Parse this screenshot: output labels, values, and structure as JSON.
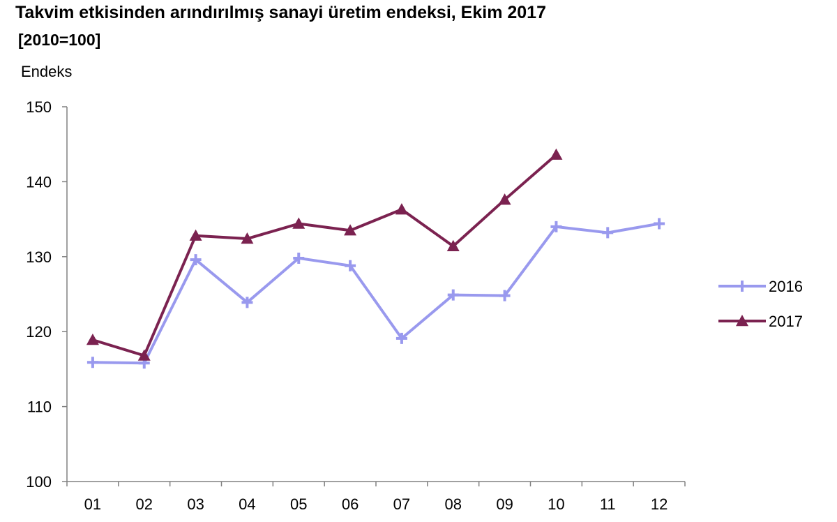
{
  "chart_data": {
    "type": "line",
    "title": "Takvim etkisinden arındırılmış sanayi üretim endeksi,  Ekim 2017",
    "subtitle": "[2010=100]",
    "xlabel": "",
    "ylabel": "Endeks",
    "categories": [
      "01",
      "02",
      "03",
      "04",
      "05",
      "06",
      "07",
      "08",
      "09",
      "10",
      "11",
      "12"
    ],
    "ylim": [
      100,
      150
    ],
    "yticks": [
      100,
      110,
      120,
      130,
      140,
      150
    ],
    "grid": false,
    "legend_position": "right",
    "series": [
      {
        "name": "2016",
        "color": "#9999ee",
        "marker": "plus",
        "values": [
          115.9,
          115.8,
          129.6,
          123.9,
          129.8,
          128.8,
          119.1,
          124.9,
          124.8,
          134.0,
          133.2,
          134.4
        ]
      },
      {
        "name": "2017",
        "color": "#7b2250",
        "marker": "triangle",
        "values": [
          118.9,
          116.8,
          132.8,
          132.4,
          134.4,
          133.5,
          136.3,
          131.4,
          137.6,
          143.6,
          null,
          null
        ]
      }
    ]
  }
}
